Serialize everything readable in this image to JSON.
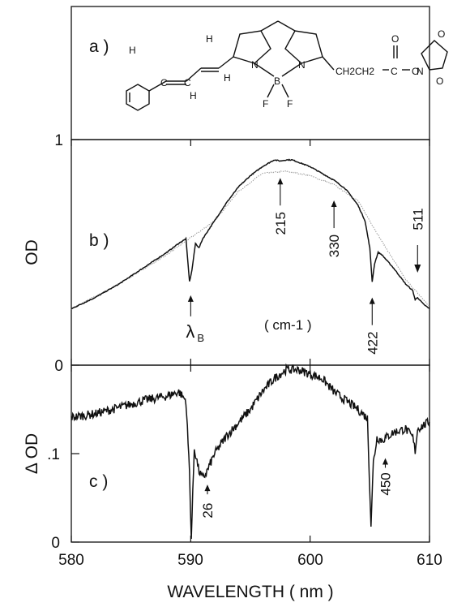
{
  "chart_data": {
    "type": "line",
    "xlabel": "WAVELENGTH ( nm )",
    "xlim": [
      580,
      610
    ],
    "x_ticks": [
      "580",
      "590",
      "600",
      "610"
    ],
    "panels": [
      {
        "tag": "a )",
        "content": "molecular structure",
        "structure_labels": [
          "H",
          "H",
          "C",
          "C",
          "H",
          "H",
          "B",
          "N",
          "N",
          "F",
          "F",
          "CH2CH2",
          "C",
          "O",
          "O",
          "N",
          "O",
          "O"
        ]
      },
      {
        "tag": "b )",
        "ylabel": "OD",
        "ylim": [
          0,
          1
        ],
        "y_ticks": [
          "0",
          "1"
        ],
        "series": [
          {
            "role": "measured",
            "x": [
              580,
              582,
              584,
              586,
              588,
              589,
              589.6,
              589.9,
              590.1,
              590.4,
              590.7,
              591,
              592,
              593,
              594,
              595,
              596,
              597,
              597.5,
              598,
              598.5,
              599,
              600,
              601,
              602,
              603,
              604,
              604.6,
              605,
              605.2,
              605.4,
              605.7,
              606,
              607,
              608,
              608.6,
              608.8,
              609,
              609.5,
              610
            ],
            "y": [
              0.25,
              0.3,
              0.36,
              0.43,
              0.5,
              0.54,
              0.56,
              0.37,
              0.42,
              0.54,
              0.52,
              0.56,
              0.64,
              0.72,
              0.79,
              0.84,
              0.88,
              0.91,
              0.905,
              0.91,
              0.91,
              0.9,
              0.88,
              0.85,
              0.82,
              0.78,
              0.71,
              0.64,
              0.52,
              0.37,
              0.45,
              0.5,
              0.49,
              0.43,
              0.36,
              0.33,
              0.29,
              0.3,
              0.27,
              0.25
            ]
          },
          {
            "role": "reference",
            "x": [
              580,
              584,
              588,
              592,
              594,
              596,
              598,
              600,
              602,
              604,
              606,
              608,
              610
            ],
            "y": [
              0.25,
              0.36,
              0.49,
              0.64,
              0.77,
              0.85,
              0.86,
              0.84,
              0.8,
              0.73,
              0.55,
              0.38,
              0.26
            ]
          }
        ],
        "annotations": [
          {
            "text": "215",
            "x": 597.5,
            "y": 0.83,
            "direction": "up"
          },
          {
            "text": "330",
            "x": 602,
            "y": 0.73,
            "direction": "up"
          },
          {
            "text": "511",
            "x": 609,
            "y": 0.41,
            "direction": "down"
          },
          {
            "text": "422",
            "x": 605.2,
            "y": 0.3,
            "direction": "up"
          },
          {
            "text": "λ",
            "sub": "B",
            "x": 590,
            "y": 0.31,
            "direction": "up"
          }
        ],
        "unit_note": "( cm-1 )"
      },
      {
        "tag": "c )",
        "ylabel": "Δ OD",
        "ylim": [
          0,
          0.2
        ],
        "y_ticks": [
          "0",
          ".1"
        ],
        "series": [
          {
            "role": "difference",
            "x": [
              580,
              582,
              584,
              586,
              588,
              589,
              589.6,
              589.9,
              590.05,
              590.3,
              590.7,
              591,
              591.3,
              592,
              593,
              594,
              595,
              596,
              597,
              598,
              599,
              600,
              601,
              602,
              603,
              604,
              604.8,
              605.1,
              605.3,
              605.6,
              606,
              607,
              608,
              608.6,
              608.8,
              609,
              610
            ],
            "y": [
              0.141,
              0.145,
              0.152,
              0.16,
              0.165,
              0.17,
              0.16,
              0.08,
              0.004,
              0.106,
              0.08,
              0.072,
              0.078,
              0.1,
              0.12,
              0.135,
              0.15,
              0.17,
              0.185,
              0.195,
              0.195,
              0.19,
              0.185,
              0.17,
              0.16,
              0.15,
              0.14,
              0.02,
              0.09,
              0.118,
              0.115,
              0.124,
              0.128,
              0.118,
              0.103,
              0.128,
              0.136
            ]
          }
        ],
        "annotations": [
          {
            "text": "26",
            "x": 591.4,
            "y": 0.065,
            "direction": "up"
          },
          {
            "text": "450",
            "x": 606.3,
            "y": 0.095,
            "direction": "up"
          }
        ]
      }
    ],
    "grid": false,
    "legend": "none"
  }
}
